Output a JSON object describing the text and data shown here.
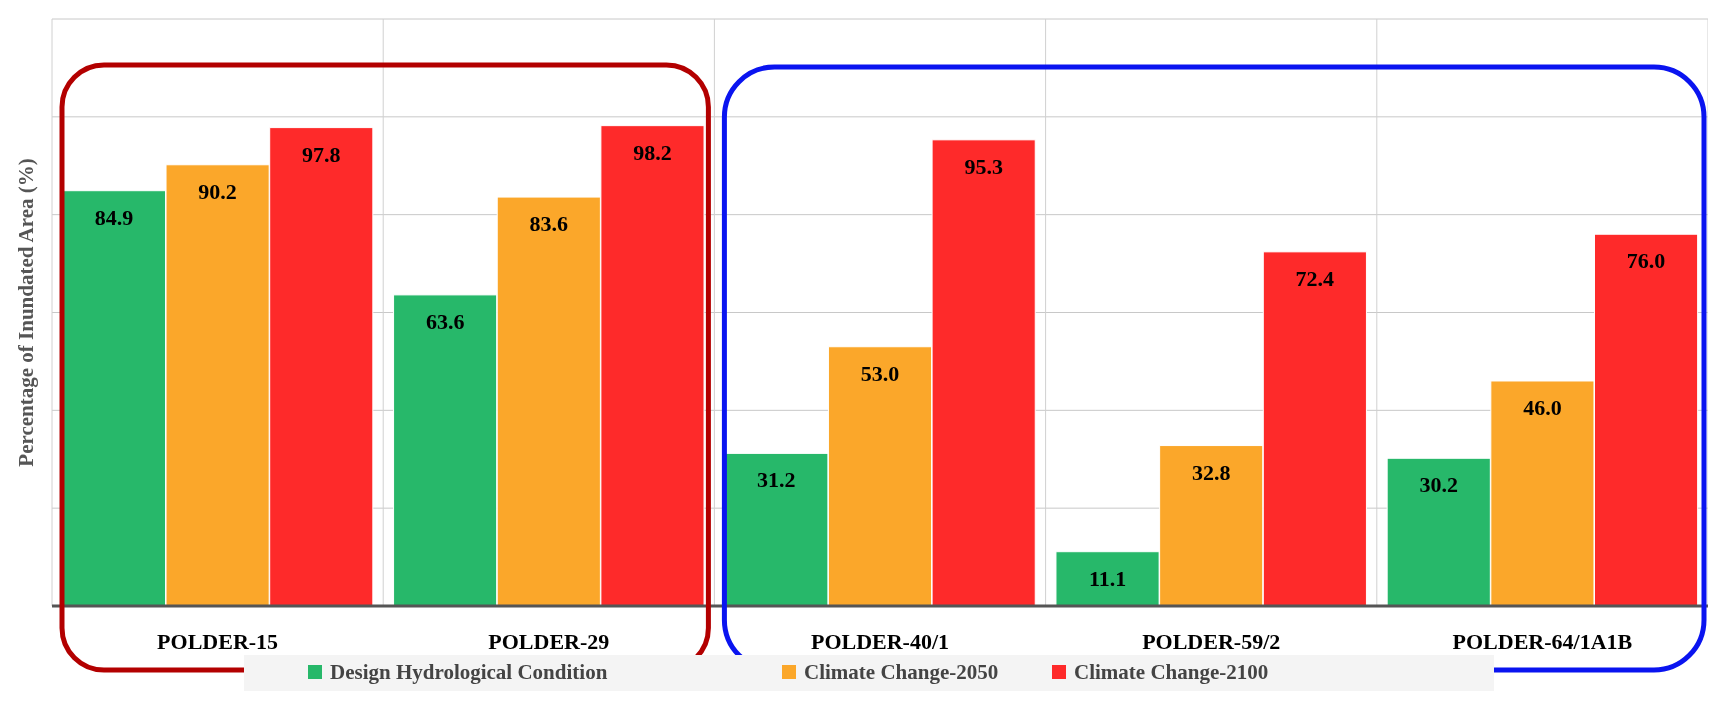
{
  "chart_data": {
    "type": "bar",
    "ylabel": "Percentage of Inundated Area (%)",
    "categories": [
      "POLDER-15",
      "POLDER-29",
      "POLDER-40/1",
      "POLDER-59/2",
      "POLDER-64/1A1B"
    ],
    "series": [
      {
        "name": "Design Hydrological Condition",
        "color": "#27b86a",
        "values": [
          84.9,
          63.6,
          31.2,
          11.1,
          30.2
        ],
        "value_labels": [
          "84.9",
          "63.6",
          "31.2",
          "11.1",
          "30.2"
        ]
      },
      {
        "name": "Climate Change-2050",
        "color": "#fba72a",
        "values": [
          90.2,
          83.6,
          53.0,
          32.8,
          46.0
        ],
        "value_labels": [
          "90.2",
          "83.6",
          "53.0",
          "32.8",
          "46.0"
        ]
      },
      {
        "name": "Climate Change-2100",
        "color": "#fe2a2a",
        "values": [
          97.8,
          98.2,
          95.3,
          72.4,
          76.0
        ],
        "value_labels": [
          "97.8",
          "98.2",
          "95.3",
          "72.4",
          "76.0"
        ]
      }
    ],
    "ylim": [
      0,
      120
    ],
    "yticks": [
      {
        "value": 0,
        "label": null
      },
      {
        "value": 20,
        "label": null
      },
      {
        "value": 40,
        "label": null
      },
      {
        "value": 60,
        "label": null
      },
      {
        "value": 80,
        "label": null
      },
      {
        "value": 100,
        "label": null
      },
      {
        "value": 120,
        "label": null
      }
    ],
    "grid": true,
    "legend": "bottom"
  }
}
